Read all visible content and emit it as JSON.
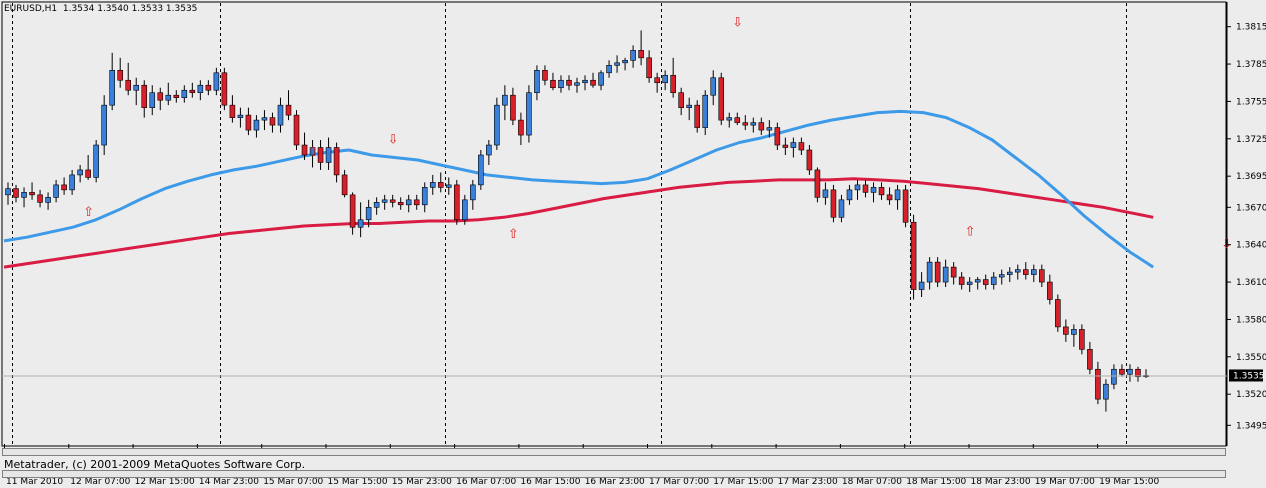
{
  "header": {
    "symbol": "EURUSD,H1",
    "ohlc": "1.3534 1.3540 1.3533 1.3535"
  },
  "copyright": "Metatrader, (c) 2001-2009 MetaQuotes Software Corp.",
  "colors": {
    "background": "#ececec",
    "bull_candle": "#3a7fd8",
    "bear_candle": "#d8202a",
    "fast_ma": "#3d9ae8",
    "slow_ma": "#d81c44",
    "signal_arrow": "#e02020",
    "grid_separator": "#000000"
  },
  "chart_data": {
    "type": "candlestick",
    "title": "EURUSD,H1",
    "ylim": [
      1.348,
      1.383
    ],
    "y_ticks": [
      "1.3815",
      "1.3785",
      "1.3755",
      "1.3725",
      "1.3695",
      "1.3670",
      "1.3640",
      "1.3610",
      "1.3580",
      "1.3550",
      "1.3520",
      "1.3495"
    ],
    "x_ticks": [
      "11 Mar 2010",
      "12 Mar 07:00",
      "12 Mar 15:00",
      "14 Mar 23:00",
      "15 Mar 07:00",
      "15 Mar 15:00",
      "15 Mar 23:00",
      "16 Mar 07:00",
      "16 Mar 15:00",
      "16 Mar 23:00",
      "17 Mar 07:00",
      "17 Mar 15:00",
      "17 Mar 23:00",
      "18 Mar 07:00",
      "18 Mar 15:00",
      "18 Mar 23:00",
      "19 Mar 07:00",
      "19 Mar 15:00"
    ],
    "day_separators_index": [
      1,
      27,
      55,
      82,
      113,
      140,
      166
    ],
    "current_price": "1.3535",
    "grid": false,
    "candles": [
      [
        1.368,
        1.369,
        1.3672,
        1.3685
      ],
      [
        1.3685,
        1.3688,
        1.3674,
        1.3678
      ],
      [
        1.3678,
        1.3686,
        1.367,
        1.3682
      ],
      [
        1.3682,
        1.369,
        1.3676,
        1.368
      ],
      [
        1.368,
        1.3684,
        1.367,
        1.3674
      ],
      [
        1.3674,
        1.3682,
        1.3668,
        1.3678
      ],
      [
        1.3678,
        1.3692,
        1.3674,
        1.3688
      ],
      [
        1.3688,
        1.3694,
        1.368,
        1.3684
      ],
      [
        1.3684,
        1.37,
        1.368,
        1.3696
      ],
      [
        1.3696,
        1.3704,
        1.369,
        1.37
      ],
      [
        1.37,
        1.3712,
        1.3692,
        1.3694
      ],
      [
        1.3694,
        1.3724,
        1.369,
        1.372
      ],
      [
        1.372,
        1.376,
        1.3712,
        1.3752
      ],
      [
        1.3752,
        1.3794,
        1.3748,
        1.378
      ],
      [
        1.378,
        1.379,
        1.3766,
        1.3772
      ],
      [
        1.3772,
        1.3786,
        1.376,
        1.3764
      ],
      [
        1.3764,
        1.3774,
        1.3752,
        1.3768
      ],
      [
        1.3768,
        1.3772,
        1.3742,
        1.375
      ],
      [
        1.375,
        1.3768,
        1.3744,
        1.3762
      ],
      [
        1.3762,
        1.3766,
        1.3748,
        1.3756
      ],
      [
        1.3756,
        1.377,
        1.3752,
        1.376
      ],
      [
        1.376,
        1.3764,
        1.3754,
        1.3758
      ],
      [
        1.3758,
        1.3768,
        1.3754,
        1.3764
      ],
      [
        1.3764,
        1.377,
        1.3758,
        1.3762
      ],
      [
        1.3762,
        1.3772,
        1.3756,
        1.3768
      ],
      [
        1.3768,
        1.3772,
        1.376,
        1.3764
      ],
      [
        1.3764,
        1.3782,
        1.376,
        1.3778
      ],
      [
        1.3778,
        1.3782,
        1.3748,
        1.3752
      ],
      [
        1.3752,
        1.376,
        1.3738,
        1.3742
      ],
      [
        1.3742,
        1.375,
        1.3734,
        1.3744
      ],
      [
        1.3744,
        1.375,
        1.3728,
        1.3732
      ],
      [
        1.3732,
        1.3744,
        1.3726,
        1.374
      ],
      [
        1.374,
        1.3748,
        1.3732,
        1.3742
      ],
      [
        1.3742,
        1.3746,
        1.373,
        1.3736
      ],
      [
        1.3736,
        1.3758,
        1.373,
        1.3752
      ],
      [
        1.3752,
        1.3764,
        1.374,
        1.3744
      ],
      [
        1.3744,
        1.3748,
        1.3716,
        1.372
      ],
      [
        1.372,
        1.373,
        1.3708,
        1.3712
      ],
      [
        1.3712,
        1.3724,
        1.3702,
        1.3718
      ],
      [
        1.3718,
        1.3724,
        1.37,
        1.3706
      ],
      [
        1.3706,
        1.3726,
        1.37,
        1.3718
      ],
      [
        1.3718,
        1.3722,
        1.369,
        1.3696
      ],
      [
        1.3696,
        1.37,
        1.3678,
        1.368
      ],
      [
        1.368,
        1.3682,
        1.3648,
        1.3654
      ],
      [
        1.3654,
        1.3674,
        1.3646,
        1.366
      ],
      [
        1.366,
        1.3676,
        1.3654,
        1.367
      ],
      [
        1.367,
        1.3678,
        1.3664,
        1.3674
      ],
      [
        1.3674,
        1.368,
        1.3668,
        1.3676
      ],
      [
        1.3676,
        1.368,
        1.367,
        1.3674
      ],
      [
        1.3674,
        1.3678,
        1.3668,
        1.3672
      ],
      [
        1.3672,
        1.368,
        1.3666,
        1.3676
      ],
      [
        1.3676,
        1.368,
        1.3668,
        1.3672
      ],
      [
        1.3672,
        1.369,
        1.3666,
        1.3686
      ],
      [
        1.3686,
        1.3696,
        1.368,
        1.369
      ],
      [
        1.369,
        1.3698,
        1.3682,
        1.3686
      ],
      [
        1.3686,
        1.3694,
        1.368,
        1.3688
      ],
      [
        1.3688,
        1.3692,
        1.3656,
        1.366
      ],
      [
        1.366,
        1.368,
        1.3656,
        1.3676
      ],
      [
        1.3676,
        1.3692,
        1.3668,
        1.3688
      ],
      [
        1.3688,
        1.3716,
        1.3684,
        1.3712
      ],
      [
        1.3712,
        1.3724,
        1.3704,
        1.372
      ],
      [
        1.372,
        1.3758,
        1.3716,
        1.3752
      ],
      [
        1.3752,
        1.3768,
        1.374,
        1.376
      ],
      [
        1.376,
        1.3766,
        1.3736,
        1.374
      ],
      [
        1.374,
        1.3746,
        1.372,
        1.3728
      ],
      [
        1.3728,
        1.3768,
        1.3722,
        1.3762
      ],
      [
        1.3762,
        1.3784,
        1.3756,
        1.378
      ],
      [
        1.378,
        1.3784,
        1.3768,
        1.3772
      ],
      [
        1.3772,
        1.3778,
        1.3764,
        1.3766
      ],
      [
        1.3766,
        1.3776,
        1.3762,
        1.3772
      ],
      [
        1.3772,
        1.3776,
        1.3764,
        1.3768
      ],
      [
        1.3768,
        1.3774,
        1.3762,
        1.377
      ],
      [
        1.377,
        1.3776,
        1.3764,
        1.3772
      ],
      [
        1.3772,
        1.3778,
        1.3766,
        1.3768
      ],
      [
        1.3768,
        1.378,
        1.3764,
        1.3778
      ],
      [
        1.3778,
        1.3788,
        1.3774,
        1.3784
      ],
      [
        1.3784,
        1.3792,
        1.3778,
        1.3786
      ],
      [
        1.3786,
        1.379,
        1.378,
        1.3788
      ],
      [
        1.3788,
        1.38,
        1.3782,
        1.3796
      ],
      [
        1.3796,
        1.3812,
        1.3784,
        1.379
      ],
      [
        1.379,
        1.3796,
        1.377,
        1.3774
      ],
      [
        1.3774,
        1.3778,
        1.3762,
        1.377
      ],
      [
        1.377,
        1.378,
        1.3764,
        1.3776
      ],
      [
        1.3776,
        1.379,
        1.3758,
        1.3762
      ],
      [
        1.3762,
        1.3766,
        1.3744,
        1.375
      ],
      [
        1.375,
        1.3758,
        1.374,
        1.3752
      ],
      [
        1.3752,
        1.3756,
        1.373,
        1.3734
      ],
      [
        1.3734,
        1.3764,
        1.3728,
        1.376
      ],
      [
        1.376,
        1.378,
        1.3752,
        1.3774
      ],
      [
        1.3774,
        1.3778,
        1.3736,
        1.374
      ],
      [
        1.374,
        1.3746,
        1.3734,
        1.3742
      ],
      [
        1.3742,
        1.3746,
        1.3736,
        1.3738
      ],
      [
        1.3738,
        1.3744,
        1.3732,
        1.3736
      ],
      [
        1.3736,
        1.3742,
        1.373,
        1.3738
      ],
      [
        1.3738,
        1.3742,
        1.3728,
        1.3732
      ],
      [
        1.3732,
        1.374,
        1.3726,
        1.3734
      ],
      [
        1.3734,
        1.3738,
        1.3716,
        1.372
      ],
      [
        1.372,
        1.3726,
        1.3712,
        1.3718
      ],
      [
        1.3718,
        1.3726,
        1.371,
        1.3722
      ],
      [
        1.3722,
        1.3726,
        1.3712,
        1.3716
      ],
      [
        1.3716,
        1.372,
        1.3696,
        1.37
      ],
      [
        1.37,
        1.3702,
        1.3674,
        1.3678
      ],
      [
        1.3678,
        1.369,
        1.3672,
        1.3684
      ],
      [
        1.3684,
        1.3688,
        1.3658,
        1.3662
      ],
      [
        1.3662,
        1.368,
        1.3658,
        1.3676
      ],
      [
        1.3676,
        1.3688,
        1.3672,
        1.3684
      ],
      [
        1.3684,
        1.3692,
        1.3676,
        1.3688
      ],
      [
        1.3688,
        1.3692,
        1.3678,
        1.3682
      ],
      [
        1.3682,
        1.369,
        1.3674,
        1.3686
      ],
      [
        1.3686,
        1.369,
        1.3676,
        1.368
      ],
      [
        1.368,
        1.3686,
        1.3672,
        1.3676
      ],
      [
        1.3676,
        1.3688,
        1.3668,
        1.3684
      ],
      [
        1.3684,
        1.3688,
        1.3654,
        1.3658
      ],
      [
        1.3658,
        1.3664,
        1.3596,
        1.3604
      ],
      [
        1.3604,
        1.3618,
        1.3598,
        1.361
      ],
      [
        1.361,
        1.363,
        1.3604,
        1.3626
      ],
      [
        1.3626,
        1.363,
        1.3606,
        1.361
      ],
      [
        1.361,
        1.3628,
        1.3606,
        1.3622
      ],
      [
        1.3622,
        1.3626,
        1.3608,
        1.3614
      ],
      [
        1.3614,
        1.3618,
        1.3604,
        1.3608
      ],
      [
        1.3608,
        1.3614,
        1.3602,
        1.361
      ],
      [
        1.361,
        1.3614,
        1.3604,
        1.3612
      ],
      [
        1.3612,
        1.3616,
        1.3604,
        1.3608
      ],
      [
        1.3608,
        1.3618,
        1.3604,
        1.3614
      ],
      [
        1.3614,
        1.362,
        1.3608,
        1.3616
      ],
      [
        1.3616,
        1.3622,
        1.361,
        1.3618
      ],
      [
        1.3618,
        1.3624,
        1.3612,
        1.362
      ],
      [
        1.362,
        1.3626,
        1.3612,
        1.3616
      ],
      [
        1.3616,
        1.3624,
        1.361,
        1.362
      ],
      [
        1.362,
        1.3624,
        1.3606,
        1.361
      ],
      [
        1.361,
        1.3616,
        1.3592,
        1.3596
      ],
      [
        1.3596,
        1.36,
        1.357,
        1.3574
      ],
      [
        1.3574,
        1.358,
        1.3562,
        1.3568
      ],
      [
        1.3568,
        1.3576,
        1.3558,
        1.3572
      ],
      [
        1.3572,
        1.3576,
        1.3552,
        1.3556
      ],
      [
        1.3556,
        1.3562,
        1.3536,
        1.354
      ],
      [
        1.354,
        1.3546,
        1.3512,
        1.3516
      ],
      [
        1.3516,
        1.3532,
        1.3506,
        1.3528
      ],
      [
        1.3528,
        1.3544,
        1.3524,
        1.354
      ],
      [
        1.354,
        1.3544,
        1.3534,
        1.3536
      ],
      [
        1.3536,
        1.3544,
        1.353,
        1.354
      ],
      [
        1.354,
        1.3542,
        1.353,
        1.3534
      ],
      [
        1.3534,
        1.354,
        1.3533,
        1.3535
      ]
    ],
    "fast_ma": [
      1.3643,
      1.3646,
      1.365,
      1.3654,
      1.366,
      1.3668,
      1.3677,
      1.3685,
      1.3691,
      1.3696,
      1.37,
      1.3703,
      1.3707,
      1.3711,
      1.3714,
      1.3716,
      1.3712,
      1.371,
      1.3708,
      1.3704,
      1.37,
      1.3696,
      1.3694,
      1.3692,
      1.3691,
      1.369,
      1.3689,
      1.369,
      1.3693,
      1.37,
      1.3708,
      1.3716,
      1.3722,
      1.3726,
      1.3731,
      1.3736,
      1.374,
      1.3743,
      1.3746,
      1.3747,
      1.3746,
      1.3742,
      1.3734,
      1.3724,
      1.371,
      1.3696,
      1.368,
      1.3663,
      1.3648,
      1.3634,
      1.3622
    ],
    "slow_ma": [
      1.3622,
      1.3625,
      1.3628,
      1.3631,
      1.3634,
      1.3637,
      1.364,
      1.3643,
      1.3646,
      1.3649,
      1.3651,
      1.3653,
      1.3655,
      1.3656,
      1.3657,
      1.3657,
      1.3658,
      1.3659,
      1.3659,
      1.366,
      1.3662,
      1.3665,
      1.3669,
      1.3673,
      1.3677,
      1.368,
      1.3683,
      1.3686,
      1.3688,
      1.369,
      1.3691,
      1.3692,
      1.3692,
      1.3692,
      1.3693,
      1.3692,
      1.3691,
      1.3689,
      1.3687,
      1.3685,
      1.3682,
      1.3679,
      1.3676,
      1.3673,
      1.367,
      1.3666,
      1.3662
    ]
  }
}
